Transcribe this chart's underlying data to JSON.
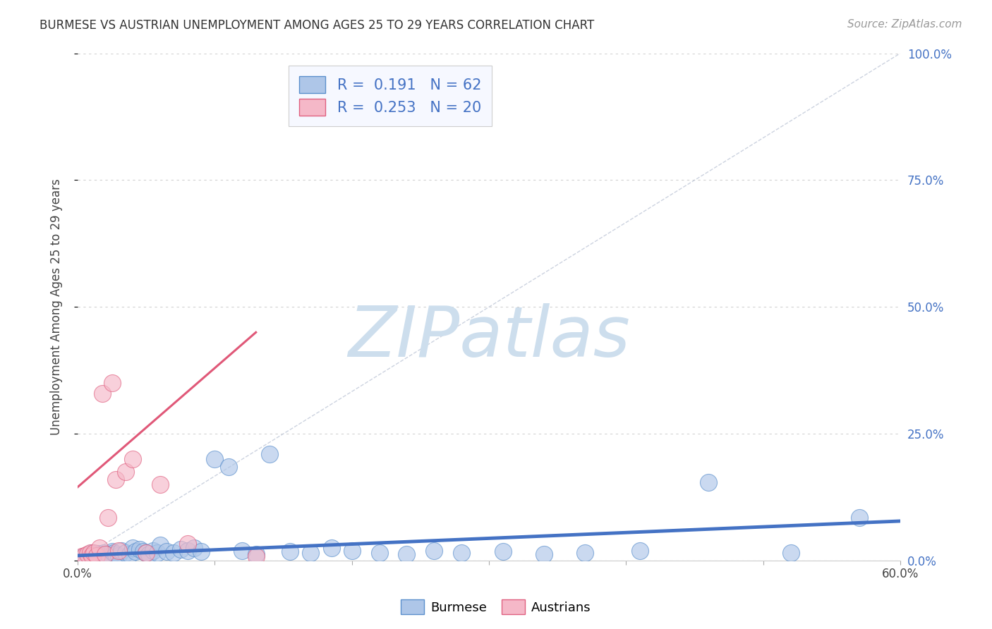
{
  "title": "BURMESE VS AUSTRIAN UNEMPLOYMENT AMONG AGES 25 TO 29 YEARS CORRELATION CHART",
  "source": "Source: ZipAtlas.com",
  "ylabel": "Unemployment Among Ages 25 to 29 years",
  "yticks": [
    0.0,
    0.25,
    0.5,
    0.75,
    1.0
  ],
  "ytick_labels_right": [
    "0.0%",
    "25.0%",
    "50.0%",
    "75.0%",
    "100.0%"
  ],
  "xticks": [
    0.0,
    0.1,
    0.2,
    0.3,
    0.4,
    0.5,
    0.6
  ],
  "xticklabels": [
    "0.0%",
    "",
    "",
    "",
    "",
    "",
    "60.0%"
  ],
  "xmin": 0.0,
  "xmax": 0.6,
  "ymin": 0.0,
  "ymax": 1.0,
  "blue_color": "#aec6e8",
  "pink_color": "#f5b8c8",
  "blue_edge_color": "#5b8fcc",
  "pink_edge_color": "#e06080",
  "blue_line_color": "#4472c4",
  "pink_line_color": "#e05878",
  "legend_R_blue": "0.191",
  "legend_N_blue": "62",
  "legend_R_pink": "0.253",
  "legend_N_pink": "20",
  "watermark": "ZIPatlas",
  "watermark_color": "#cddeed",
  "blue_scatter_x": [
    0.002,
    0.004,
    0.006,
    0.007,
    0.008,
    0.009,
    0.01,
    0.011,
    0.012,
    0.013,
    0.014,
    0.015,
    0.016,
    0.017,
    0.018,
    0.019,
    0.02,
    0.021,
    0.022,
    0.023,
    0.025,
    0.026,
    0.028,
    0.03,
    0.032,
    0.035,
    0.038,
    0.04,
    0.042,
    0.045,
    0.048,
    0.05,
    0.052,
    0.055,
    0.058,
    0.06,
    0.065,
    0.07,
    0.075,
    0.08,
    0.085,
    0.09,
    0.1,
    0.11,
    0.12,
    0.13,
    0.14,
    0.155,
    0.17,
    0.185,
    0.2,
    0.22,
    0.24,
    0.26,
    0.28,
    0.31,
    0.34,
    0.37,
    0.41,
    0.46,
    0.52,
    0.57
  ],
  "blue_scatter_y": [
    0.005,
    0.008,
    0.01,
    0.006,
    0.012,
    0.008,
    0.015,
    0.01,
    0.008,
    0.012,
    0.01,
    0.014,
    0.012,
    0.01,
    0.008,
    0.015,
    0.012,
    0.01,
    0.012,
    0.008,
    0.018,
    0.015,
    0.012,
    0.01,
    0.02,
    0.015,
    0.012,
    0.025,
    0.018,
    0.022,
    0.018,
    0.015,
    0.012,
    0.02,
    0.015,
    0.03,
    0.018,
    0.015,
    0.022,
    0.02,
    0.025,
    0.018,
    0.2,
    0.185,
    0.02,
    0.012,
    0.21,
    0.018,
    0.015,
    0.025,
    0.02,
    0.015,
    0.012,
    0.02,
    0.015,
    0.018,
    0.012,
    0.015,
    0.02,
    0.155,
    0.015,
    0.085
  ],
  "pink_scatter_x": [
    0.003,
    0.005,
    0.007,
    0.009,
    0.01,
    0.012,
    0.014,
    0.016,
    0.018,
    0.02,
    0.022,
    0.025,
    0.028,
    0.03,
    0.035,
    0.04,
    0.05,
    0.06,
    0.08,
    0.13
  ],
  "pink_scatter_y": [
    0.008,
    0.01,
    0.012,
    0.015,
    0.01,
    0.015,
    0.01,
    0.025,
    0.33,
    0.012,
    0.085,
    0.35,
    0.16,
    0.02,
    0.175,
    0.2,
    0.015,
    0.15,
    0.033,
    0.008
  ],
  "blue_regline_x": [
    0.0,
    0.6
  ],
  "blue_regline_y": [
    0.01,
    0.078
  ],
  "pink_regline_x": [
    0.0,
    0.13
  ],
  "pink_regline_y": [
    0.145,
    0.45
  ],
  "diag_line_x": [
    0.0,
    0.6
  ],
  "diag_line_y": [
    0.0,
    1.0
  ],
  "grid_color": "#cccccc",
  "title_fontsize": 12,
  "source_fontsize": 11,
  "tick_fontsize": 12,
  "ylabel_fontsize": 12
}
